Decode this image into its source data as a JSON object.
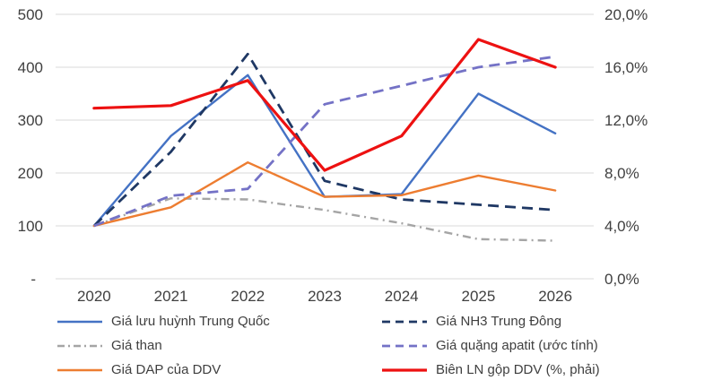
{
  "chart_data": {
    "type": "line",
    "title": "",
    "categories": [
      "2020",
      "2021",
      "2022",
      "2023",
      "2024",
      "2025",
      "2026"
    ],
    "series": [
      {
        "name": "Giá lưu huỳnh Trung Quốc",
        "axis": "left",
        "color": "#4472C4",
        "style": "solid",
        "width": 2.4,
        "values": [
          100,
          270,
          385,
          155,
          160,
          350,
          275
        ]
      },
      {
        "name": "Giá NH3 Trung Đông",
        "axis": "left",
        "color": "#1F3864",
        "style": "dashed",
        "width": 2.8,
        "values": [
          100,
          240,
          425,
          185,
          150,
          140,
          130
        ]
      },
      {
        "name": "Giá than",
        "axis": "left",
        "color": "#A5A5A5",
        "style": "dashdot",
        "width": 2.4,
        "values": [
          100,
          152,
          150,
          130,
          105,
          75,
          72
        ]
      },
      {
        "name": "Giá quặng apatit (ước tính)",
        "axis": "left",
        "color": "#7472C6",
        "style": "dashed",
        "width": 2.8,
        "values": [
          100,
          157,
          170,
          330,
          365,
          400,
          420
        ]
      },
      {
        "name": "Giá DAP của DDV",
        "axis": "left",
        "color": "#ED7D31",
        "style": "solid",
        "width": 2.4,
        "values": [
          100,
          135,
          220,
          155,
          158,
          195,
          167
        ]
      },
      {
        "name": "Biên LN gộp DDV (%, phải)",
        "axis": "right",
        "color": "#ED1111",
        "style": "solid",
        "width": 3.2,
        "values": [
          12.9,
          13.1,
          15.0,
          8.2,
          10.8,
          18.1,
          16.0
        ]
      }
    ],
    "left_axis": {
      "min": 0,
      "max": 500,
      "tick_labels": [
        "500",
        "400",
        "300",
        "200",
        "100",
        "-"
      ]
    },
    "right_axis": {
      "min": 0,
      "max": 20,
      "tick_labels": [
        "20,0%",
        "16,0%",
        "12,0%",
        "8,0%",
        "4,0%",
        "0,0%"
      ]
    },
    "grid": true,
    "gridline_color": "#D9D9D9",
    "legend_position": "bottom",
    "legend_columns": [
      [
        0,
        2,
        4
      ],
      [
        1,
        3,
        5
      ]
    ],
    "draw_order": [
      0,
      1,
      2,
      4,
      3,
      5
    ]
  }
}
